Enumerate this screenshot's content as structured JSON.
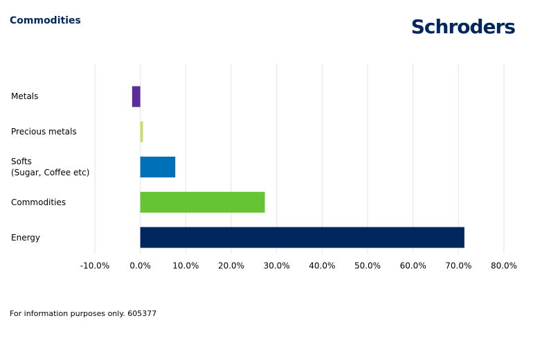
{
  "header": {
    "title": "Commodities",
    "logo": "Schroders"
  },
  "chart_data": {
    "type": "hbar",
    "categories": [
      "Metals",
      "Precious metals",
      "Softs\n(Sugar, Coffee etc)",
      "Commodities",
      "Energy"
    ],
    "values": [
      -1.8,
      0.6,
      7.7,
      27.4,
      71.3
    ],
    "colors": [
      "#5a2e9a",
      "#c6e06a",
      "#0071b9",
      "#64c432",
      "#00285e"
    ],
    "xlim": [
      -10,
      80
    ],
    "xticks": [
      {
        "value": -10,
        "label": "-10.0%"
      },
      {
        "value": 0,
        "label": "0.0%"
      },
      {
        "value": 10,
        "label": "10.0%"
      },
      {
        "value": 20,
        "label": "20.0%"
      },
      {
        "value": 30,
        "label": "30.0%"
      },
      {
        "value": 40,
        "label": "40.0%"
      },
      {
        "value": 50,
        "label": "50.0%"
      },
      {
        "value": 60,
        "label": "60.0%"
      },
      {
        "value": 70,
        "label": "70.0%"
      },
      {
        "value": 80,
        "label": "80.0%"
      }
    ],
    "grid": true
  },
  "footer": {
    "note": "For information purposes only. 605377"
  }
}
